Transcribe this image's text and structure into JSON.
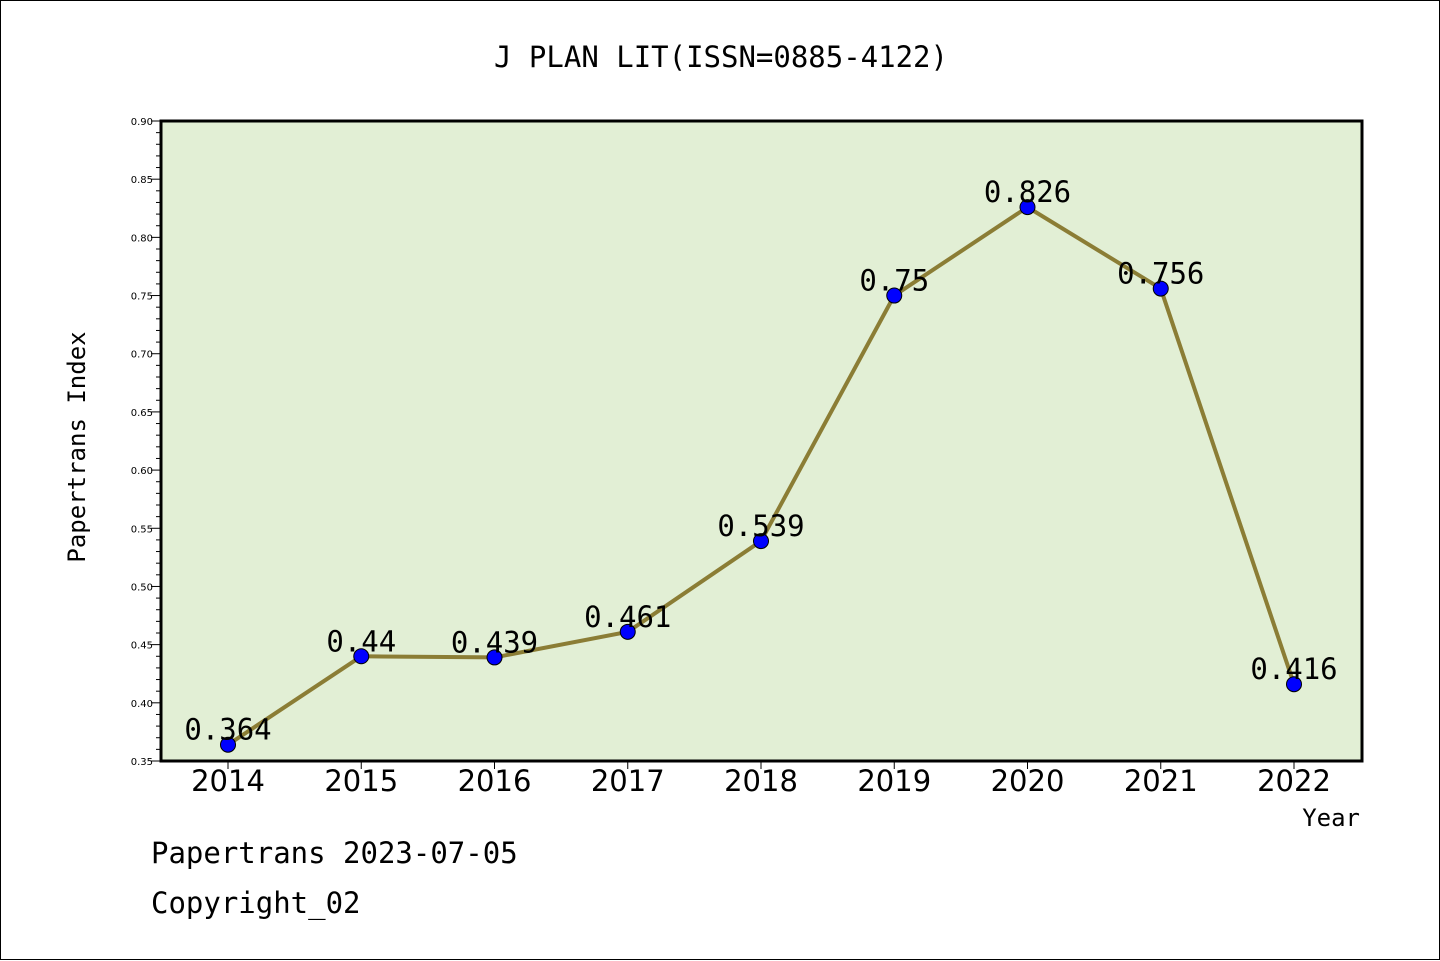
{
  "chart_data": {
    "type": "line",
    "title": "J PLAN LIT(ISSN=0885-4122)",
    "xlabel": "Year",
    "ylabel": "Papertrans Index",
    "categories": [
      "2014",
      "2015",
      "2016",
      "2017",
      "2018",
      "2019",
      "2020",
      "2021",
      "2022"
    ],
    "values": [
      0.364,
      0.44,
      0.439,
      0.461,
      0.539,
      0.75,
      0.826,
      0.756,
      0.416
    ],
    "data_labels": [
      "0.364",
      "0.44",
      "0.439",
      "0.461",
      "0.539",
      "0.75",
      "0.826",
      "0.756",
      "0.416"
    ],
    "ylim": [
      0.35,
      0.9
    ],
    "yticks": [
      "0.35",
      "0.40",
      "0.45",
      "0.50",
      "0.55",
      "0.60",
      "0.65",
      "0.70",
      "0.75",
      "0.80",
      "0.85",
      "0.90"
    ],
    "grid": false,
    "legend": "none",
    "colors": {
      "plot_background": "#e2efd5",
      "line": "#8b7d35",
      "marker": "#0000ff"
    }
  },
  "footer": {
    "source": "Papertrans 2023-07-05",
    "copyright": "Copyright_02"
  }
}
